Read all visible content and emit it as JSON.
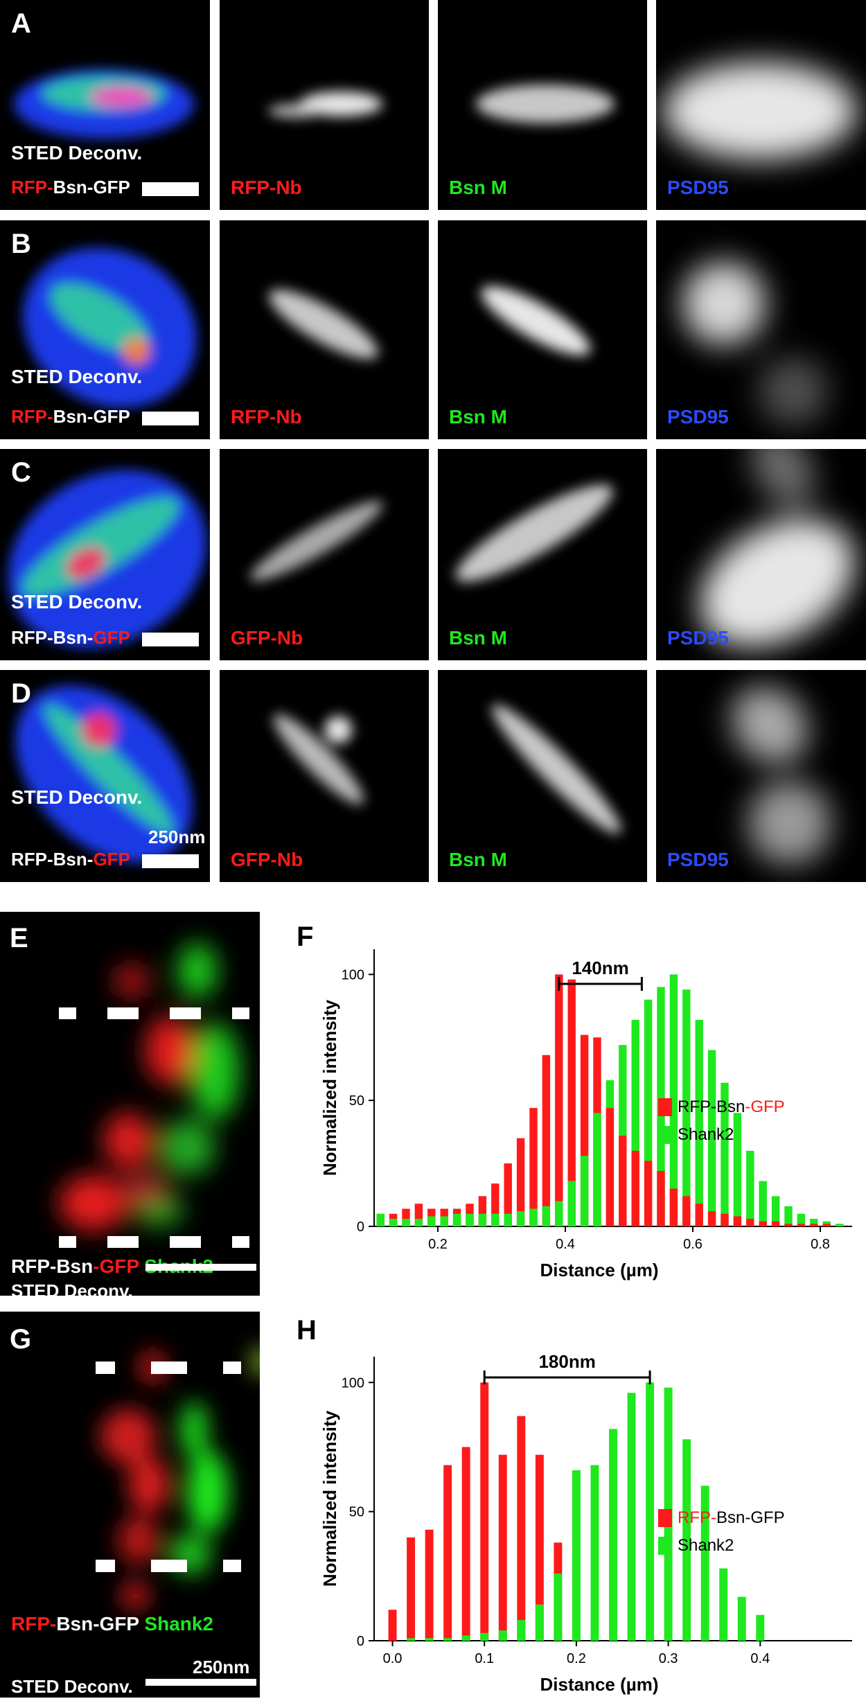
{
  "rows": [
    {
      "letter": "A",
      "merge_label_top": "STED Deconv.",
      "merge_label_parts": [
        "RFP-",
        "Bsn-GFP"
      ],
      "ch1": "RFP-Nb",
      "ch2": "Bsn M",
      "ch3": "PSD95"
    },
    {
      "letter": "B",
      "merge_label_top": "STED Deconv.",
      "merge_label_parts": [
        "RFP-",
        "Bsn-GFP"
      ],
      "ch1": "RFP-Nb",
      "ch2": "Bsn M",
      "ch3": "PSD95"
    },
    {
      "letter": "C",
      "merge_label_top": "STED Deconv.",
      "merge_label_parts": [
        "RFP-Bsn-",
        "GFP"
      ],
      "ch1": "GFP-Nb",
      "ch2": "Bsn M",
      "ch3": "PSD95"
    },
    {
      "letter": "D",
      "merge_label_top": "STED Deconv.",
      "merge_label_parts": [
        "RFP-Bsn-",
        "GFP"
      ],
      "scalebar_label": "250nm",
      "ch1": "GFP-Nb",
      "ch2": "Bsn M",
      "ch3": "PSD95"
    }
  ],
  "panel_e": {
    "letter": "E",
    "label_parts": [
      "RFP-Bsn",
      "-GFP",
      " Shank2"
    ],
    "bottom_label": "STED Deconv."
  },
  "panel_g": {
    "letter": "G",
    "label_parts": [
      "RFP-",
      "Bsn-GFP",
      " Shank2"
    ],
    "scalebar_label": "250nm",
    "bottom_label": "STED Deconv."
  },
  "colors": {
    "red": "#ff1a1a",
    "green": "#1fe81f",
    "blue": "#2b4bff"
  },
  "chart_data": [
    {
      "panel": "F",
      "type": "bar",
      "xlabel": "Distance (µm)",
      "ylabel": "Normalized intensity",
      "xlim": [
        0.1,
        0.85
      ],
      "ylim": [
        0,
        110
      ],
      "xticks": [
        0.2,
        0.4,
        0.6,
        0.8
      ],
      "yticks": [
        0,
        50,
        100
      ],
      "bracket_label": "140nm",
      "bracket_x": [
        0.39,
        0.52
      ],
      "legend": [
        {
          "parts": [
            "RFP-Bsn",
            "-GFP"
          ],
          "part_colors": [
            "#000000",
            "#ff1a1a"
          ],
          "swatch": "#ff1a1a"
        },
        {
          "parts": [
            "Shank2"
          ],
          "part_colors": [
            "#000000"
          ],
          "swatch": "#1fe81f"
        }
      ],
      "x": [
        0.11,
        0.13,
        0.15,
        0.17,
        0.19,
        0.21,
        0.23,
        0.25,
        0.27,
        0.29,
        0.31,
        0.33,
        0.35,
        0.37,
        0.39,
        0.41,
        0.43,
        0.45,
        0.47,
        0.49,
        0.51,
        0.53,
        0.55,
        0.57,
        0.59,
        0.61,
        0.63,
        0.65,
        0.67,
        0.69,
        0.71,
        0.73,
        0.75,
        0.77,
        0.79,
        0.81,
        0.83
      ],
      "series": [
        {
          "name": "RFP-Bsn-GFP",
          "color": "#ff1a1a",
          "values": [
            5,
            5,
            7,
            9,
            7,
            7,
            7,
            9,
            12,
            17,
            25,
            35,
            47,
            68,
            100,
            98,
            76,
            75,
            47,
            36,
            30,
            26,
            22,
            15,
            12,
            9,
            6,
            5,
            4,
            3,
            2,
            2,
            1,
            1,
            1,
            1,
            1
          ]
        },
        {
          "name": "Shank2",
          "color": "#1fe81f",
          "values": [
            5,
            3,
            3,
            3,
            4,
            4,
            5,
            5,
            5,
            5,
            5,
            6,
            7,
            8,
            10,
            18,
            28,
            45,
            58,
            72,
            82,
            90,
            95,
            100,
            94,
            82,
            70,
            57,
            45,
            30,
            18,
            12,
            8,
            5,
            3,
            2,
            1
          ]
        }
      ]
    },
    {
      "panel": "H",
      "type": "bar",
      "xlabel": "Distance (µm)",
      "ylabel": "Normalized intensity",
      "xlim": [
        -0.02,
        0.5
      ],
      "ylim": [
        0,
        110
      ],
      "xticks": [
        0.0,
        0.1,
        0.2,
        0.3,
        0.4
      ],
      "xticklabels": [
        "0.0",
        "0.1",
        "0.2",
        "0.3",
        "0.4"
      ],
      "yticks": [
        0,
        50,
        100
      ],
      "bracket_label": "180nm",
      "bracket_x": [
        0.1,
        0.28
      ],
      "legend": [
        {
          "parts": [
            "RFP-",
            "Bsn-GFP"
          ],
          "part_colors": [
            "#ff1a1a",
            "#000000"
          ],
          "swatch": "#ff1a1a"
        },
        {
          "parts": [
            "Shank2"
          ],
          "part_colors": [
            "#000000"
          ],
          "swatch": "#1fe81f"
        }
      ],
      "x": [
        0.0,
        0.02,
        0.04,
        0.06,
        0.08,
        0.1,
        0.12,
        0.14,
        0.16,
        0.18,
        0.2,
        0.22,
        0.24,
        0.26,
        0.28,
        0.3,
        0.32,
        0.34,
        0.36,
        0.38,
        0.4
      ],
      "series": [
        {
          "name": "RFP-Bsn-GFP",
          "color": "#ff1a1a",
          "values": [
            12,
            40,
            43,
            68,
            75,
            100,
            72,
            87,
            72,
            38,
            0,
            0,
            0,
            0,
            0,
            0,
            0,
            0,
            0,
            0,
            0
          ]
        },
        {
          "name": "Shank2",
          "color": "#1fe81f",
          "values": [
            0,
            1,
            1,
            1,
            2,
            3,
            4,
            8,
            14,
            26,
            66,
            68,
            82,
            96,
            100,
            98,
            78,
            60,
            28,
            17,
            10
          ]
        }
      ]
    }
  ]
}
